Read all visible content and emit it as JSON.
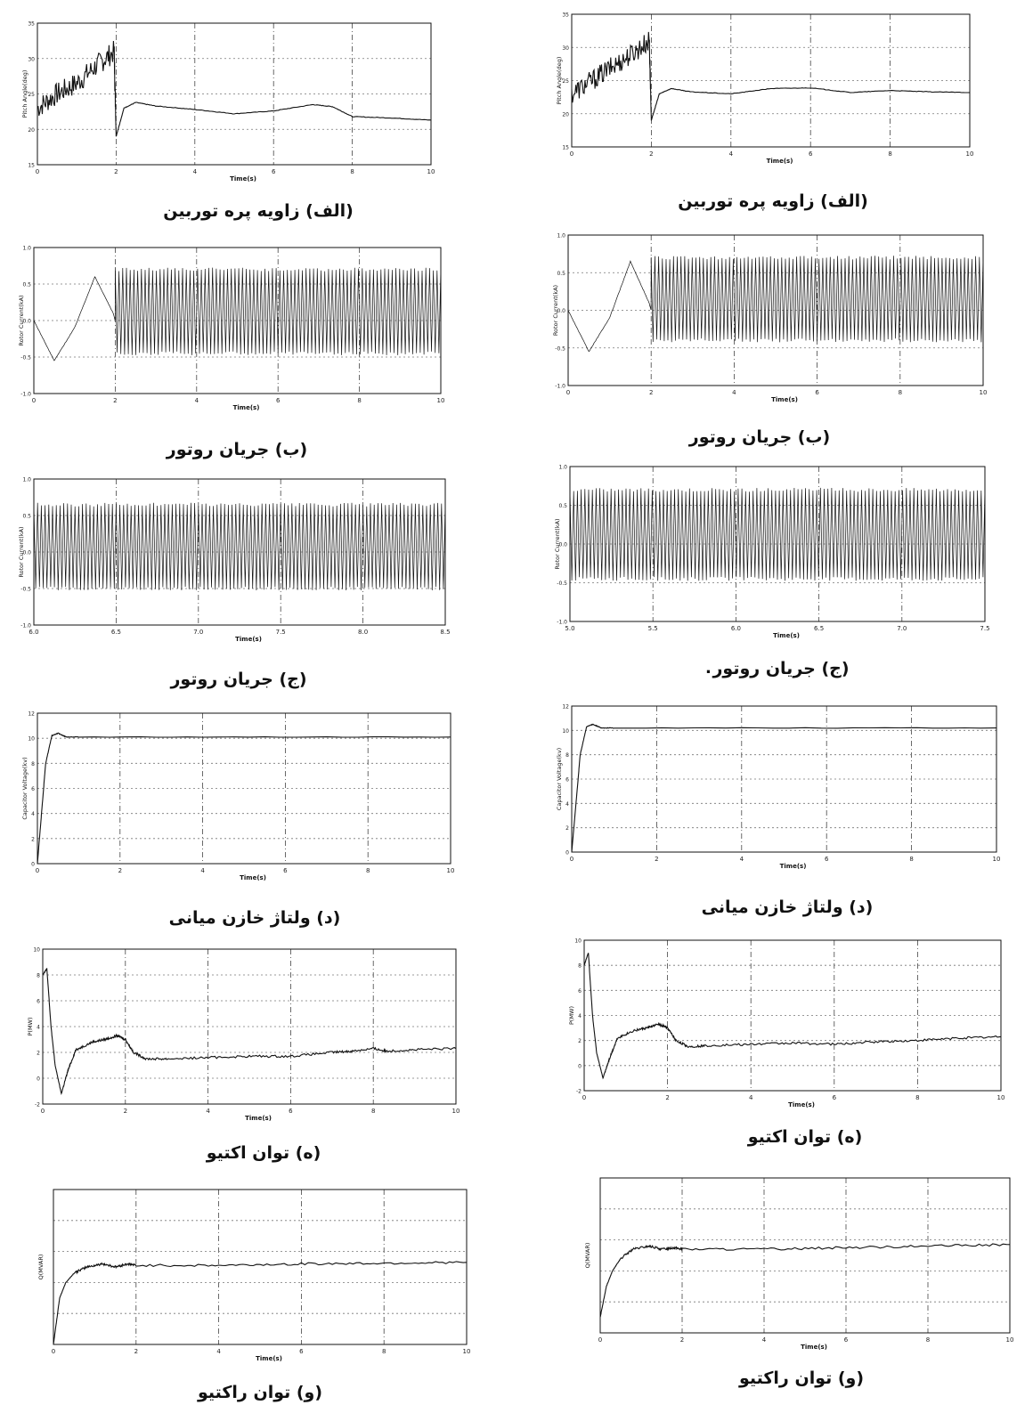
{
  "figure": {
    "stray_mark": "."
  },
  "panels": [
    {
      "id": "L1",
      "caption": "(الف) زاویه پره توربین",
      "chart_data": {
        "type": "line",
        "title": "",
        "xlabel": "Time(s)",
        "ylabel": "Pitch Angle(deg)",
        "xlim": [
          0,
          10
        ],
        "ylim": [
          15,
          35
        ],
        "xticks": [
          "0",
          "2",
          "4",
          "6",
          "8",
          "10"
        ],
        "yticks": [
          "15",
          "20",
          "25",
          "30",
          "35"
        ],
        "grid": true,
        "legend": "none",
        "series": [
          {
            "values": [
              [
                0,
                23
              ],
              [
                0.5,
                25
              ],
              [
                1,
                26.5
              ],
              [
                1.5,
                29
              ],
              [
                1.95,
                31
              ],
              [
                2.0,
                19
              ],
              [
                2.2,
                23
              ],
              [
                2.5,
                23.8
              ],
              [
                3,
                23.3
              ],
              [
                4,
                22.8
              ],
              [
                5,
                22.2
              ],
              [
                6,
                22.6
              ],
              [
                7,
                23.5
              ],
              [
                7.5,
                23.2
              ],
              [
                8,
                21.8
              ],
              [
                9,
                21.6
              ],
              [
                10,
                21.3
              ]
            ]
          }
        ]
      }
    },
    {
      "id": "R1",
      "caption": "(الف) زاویه پره توربین",
      "chart_data": {
        "type": "line",
        "title": "",
        "xlabel": "Time(s)",
        "ylabel": "Pitch Angle(deg)",
        "xlim": [
          0,
          10
        ],
        "ylim": [
          15,
          35
        ],
        "xticks": [
          "0",
          "2",
          "4",
          "6",
          "8",
          "10"
        ],
        "yticks": [
          "15",
          "20",
          "25",
          "30",
          "35"
        ],
        "grid": true,
        "legend": "none",
        "series": [
          {
            "values": [
              [
                0,
                23
              ],
              [
                0.5,
                25
              ],
              [
                1,
                27
              ],
              [
                1.5,
                29
              ],
              [
                1.95,
                31
              ],
              [
                2.0,
                19
              ],
              [
                2.2,
                23
              ],
              [
                2.5,
                23.8
              ],
              [
                3,
                23.3
              ],
              [
                4,
                23
              ],
              [
                5,
                23.8
              ],
              [
                6,
                23.9
              ],
              [
                7,
                23.2
              ],
              [
                8,
                23.5
              ],
              [
                9,
                23.3
              ],
              [
                10,
                23.2
              ]
            ]
          }
        ]
      }
    },
    {
      "id": "L2",
      "caption": "(ب) جریان روتور",
      "chart_data": {
        "type": "line",
        "title": "",
        "xlabel": "Time(s)",
        "ylabel": "Rotor Current(kA)",
        "xlim": [
          0,
          10
        ],
        "ylim": [
          -1.0,
          1.0
        ],
        "xticks": [
          "0",
          "2",
          "4",
          "6",
          "8",
          "10"
        ],
        "yticks": [
          "-1.0",
          "-0.5",
          "0.0",
          "0.5",
          "1.0"
        ],
        "grid": true,
        "legend": "none",
        "series": [
          {
            "values": [
              [
                0,
                0
              ],
              [
                0.5,
                -0.55
              ],
              [
                1.0,
                -0.1
              ],
              [
                1.5,
                0.6
              ],
              [
                1.95,
                0.1
              ],
              [
                2.0,
                0.0
              ],
              [
                2.05,
                0.7
              ],
              [
                10,
                0.7
              ]
            ],
            "oscillation": {
              "from": 2.0,
              "to": 10,
              "max": 0.7,
              "min": -0.45
            }
          }
        ]
      }
    },
    {
      "id": "R2",
      "caption": "(ب) جریان روتور",
      "chart_data": {
        "type": "line",
        "title": "",
        "xlabel": "Time(s)",
        "ylabel": "Rotor Current(kA)",
        "xlim": [
          0,
          10
        ],
        "ylim": [
          -1.0,
          1.0
        ],
        "xticks": [
          "0",
          "2",
          "4",
          "6",
          "8",
          "10"
        ],
        "yticks": [
          "-1.0",
          "-0.5",
          "0.0",
          "0.5",
          "1.0"
        ],
        "grid": true,
        "legend": "none",
        "series": [
          {
            "values": [
              [
                0,
                0
              ],
              [
                0.5,
                -0.55
              ],
              [
                1.0,
                -0.1
              ],
              [
                1.5,
                0.65
              ],
              [
                1.95,
                0.1
              ],
              [
                2.0,
                0.0
              ],
              [
                2.05,
                0.7
              ],
              [
                10,
                0.7
              ]
            ],
            "oscillation": {
              "from": 2.0,
              "to": 10,
              "max": 0.7,
              "min": -0.4
            }
          }
        ]
      }
    },
    {
      "id": "L3",
      "caption": "(ج) جریان روتور",
      "chart_data": {
        "type": "line",
        "title": "",
        "xlabel": "Time(s)",
        "ylabel": "Rotor Current(kA)",
        "xlim": [
          6.0,
          8.5
        ],
        "ylim": [
          -1.0,
          1.0
        ],
        "xticks": [
          "6.0",
          "6.5",
          "7.0",
          "7.5",
          "8.0",
          "8.5"
        ],
        "yticks": [
          "-1.0",
          "-0.5",
          "0.0",
          "0.5",
          "1.0"
        ],
        "grid": true,
        "legend": "none",
        "series": [
          {
            "values": [],
            "oscillation": {
              "from": 6.0,
              "to": 8.5,
              "max": 0.65,
              "min": -0.5
            }
          }
        ]
      }
    },
    {
      "id": "R3",
      "caption": "(ج) جریان روتور",
      "chart_data": {
        "type": "line",
        "title": "",
        "xlabel": "Time(s)",
        "ylabel": "Rotor Current(kA)",
        "xlim": [
          5.0,
          7.5
        ],
        "ylim": [
          -1.0,
          1.0
        ],
        "xticks": [
          "5.0",
          "5.5",
          "6.0",
          "6.5",
          "7.0",
          "7.5"
        ],
        "yticks": [
          "-1.0",
          "-0.5",
          "0.0",
          "0.5",
          "1.0"
        ],
        "grid": true,
        "legend": "none",
        "series": [
          {
            "values": [],
            "oscillation": {
              "from": 5.0,
              "to": 7.5,
              "max": 0.7,
              "min": -0.45
            }
          }
        ]
      }
    },
    {
      "id": "L4",
      "caption": "(د) ولتاژ خازن میانی",
      "chart_data": {
        "type": "line",
        "title": "",
        "xlabel": "Time(s)",
        "ylabel": "Capacitor Voltage(kv)",
        "xlim": [
          0,
          10
        ],
        "ylim": [
          0,
          12
        ],
        "xticks": [
          "0",
          "2",
          "4",
          "6",
          "8",
          "10"
        ],
        "yticks": [
          "0",
          "2",
          "4",
          "6",
          "8",
          "10",
          "12"
        ],
        "grid": true,
        "legend": "none",
        "series": [
          {
            "values": [
              [
                0,
                0
              ],
              [
                0.1,
                4
              ],
              [
                0.2,
                8
              ],
              [
                0.35,
                10.2
              ],
              [
                0.5,
                10.4
              ],
              [
                0.7,
                10.1
              ],
              [
                1,
                10.1
              ],
              [
                10,
                10.1
              ]
            ]
          }
        ]
      }
    },
    {
      "id": "R4",
      "caption": "(د) ولتاژ خازن میانی",
      "chart_data": {
        "type": "line",
        "title": "",
        "xlabel": "Time(s)",
        "ylabel": "Capacitor Voltage(kv)",
        "xlim": [
          0,
          10
        ],
        "ylim": [
          0,
          12
        ],
        "xticks": [
          "0",
          "2",
          "4",
          "6",
          "8",
          "10"
        ],
        "yticks": [
          "0",
          "2",
          "4",
          "6",
          "8",
          "10",
          "12"
        ],
        "grid": true,
        "legend": "none",
        "series": [
          {
            "values": [
              [
                0,
                0
              ],
              [
                0.1,
                4
              ],
              [
                0.2,
                8
              ],
              [
                0.35,
                10.3
              ],
              [
                0.5,
                10.5
              ],
              [
                0.7,
                10.2
              ],
              [
                1,
                10.2
              ],
              [
                10,
                10.2
              ]
            ]
          }
        ]
      }
    },
    {
      "id": "L5",
      "caption": "(ه) توان اکتیو",
      "chart_data": {
        "type": "line",
        "title": "",
        "xlabel": "Time(s)",
        "ylabel": "P(MW)",
        "xlim": [
          0,
          10
        ],
        "ylim": [
          -2,
          10
        ],
        "xticks": [
          "0",
          "2",
          "4",
          "6",
          "8",
          "10"
        ],
        "yticks": [
          "-2",
          "0",
          "2",
          "4",
          "6",
          "8",
          "10"
        ],
        "grid": true,
        "legend": "none",
        "series": [
          {
            "values": [
              [
                0,
                8
              ],
              [
                0.1,
                8.5
              ],
              [
                0.2,
                4
              ],
              [
                0.3,
                1
              ],
              [
                0.45,
                -1.2
              ],
              [
                0.6,
                0.5
              ],
              [
                0.8,
                2.2
              ],
              [
                1.2,
                2.8
              ],
              [
                1.5,
                3.0
              ],
              [
                1.8,
                3.3
              ],
              [
                2.0,
                3.0
              ],
              [
                2.2,
                2.0
              ],
              [
                2.5,
                1.5
              ],
              [
                3,
                1.5
              ],
              [
                4,
                1.6
              ],
              [
                5,
                1.7
              ],
              [
                6,
                1.7
              ],
              [
                7,
                2.0
              ],
              [
                7.5,
                2.1
              ],
              [
                8,
                2.3
              ],
              [
                8.3,
                2.1
              ],
              [
                9,
                2.2
              ],
              [
                10,
                2.3
              ]
            ]
          }
        ]
      }
    },
    {
      "id": "R5",
      "caption": "(ه) توان اکتیو",
      "chart_data": {
        "type": "line",
        "title": "",
        "xlabel": "Time(s)",
        "ylabel": "P(MW)",
        "xlim": [
          0,
          10
        ],
        "ylim": [
          -2,
          10
        ],
        "xticks": [
          "0",
          "2",
          "4",
          "6",
          "8",
          "10"
        ],
        "yticks": [
          "-2",
          "0",
          "2",
          "4",
          "6",
          "8",
          "10"
        ],
        "grid": true,
        "legend": "none",
        "series": [
          {
            "values": [
              [
                0,
                8
              ],
              [
                0.1,
                9
              ],
              [
                0.2,
                4
              ],
              [
                0.3,
                1
              ],
              [
                0.45,
                -1
              ],
              [
                0.6,
                0.5
              ],
              [
                0.8,
                2.2
              ],
              [
                1.2,
                2.8
              ],
              [
                1.5,
                3.0
              ],
              [
                1.8,
                3.3
              ],
              [
                2.0,
                3.0
              ],
              [
                2.2,
                2.0
              ],
              [
                2.5,
                1.5
              ],
              [
                3,
                1.6
              ],
              [
                4,
                1.7
              ],
              [
                5,
                1.8
              ],
              [
                6,
                1.7
              ],
              [
                7,
                1.9
              ],
              [
                8,
                2.0
              ],
              [
                9,
                2.2
              ],
              [
                10,
                2.3
              ]
            ]
          }
        ]
      }
    },
    {
      "id": "L6",
      "caption": "(و) توان راکتیو",
      "chart_data": {
        "type": "line",
        "title": "",
        "xlabel": "Time(s)",
        "ylabel": "Q(MVAR)",
        "xlim": [
          0,
          10
        ],
        "ylim": [
          -2,
          3
        ],
        "xticks": [
          "0",
          "2",
          "4",
          "6",
          "8",
          "10"
        ],
        "yticks": [],
        "grid": true,
        "legend": "none",
        "series": [
          {
            "values": [
              [
                0,
                -2
              ],
              [
                0.15,
                -0.5
              ],
              [
                0.3,
                0
              ],
              [
                0.5,
                0.3
              ],
              [
                0.8,
                0.5
              ],
              [
                1.2,
                0.6
              ],
              [
                1.5,
                0.5
              ],
              [
                1.8,
                0.6
              ],
              [
                2,
                0.55
              ],
              [
                4,
                0.55
              ],
              [
                6,
                0.6
              ],
              [
                8,
                0.62
              ],
              [
                10,
                0.65
              ]
            ]
          }
        ]
      }
    },
    {
      "id": "R6",
      "caption": "(و) توان راکتیو",
      "chart_data": {
        "type": "line",
        "title": "",
        "xlabel": "Time(s)",
        "ylabel": "Q(MVAR)",
        "xlim": [
          0,
          10
        ],
        "ylim": [
          -2,
          3
        ],
        "xticks": [
          "0",
          "2",
          "4",
          "6",
          "8",
          "10"
        ],
        "yticks": [],
        "grid": true,
        "legend": "none",
        "series": [
          {
            "values": [
              [
                0,
                -1.5
              ],
              [
                0.15,
                -0.5
              ],
              [
                0.3,
                0
              ],
              [
                0.5,
                0.4
              ],
              [
                0.8,
                0.7
              ],
              [
                1.2,
                0.8
              ],
              [
                1.5,
                0.7
              ],
              [
                1.8,
                0.75
              ],
              [
                2,
                0.7
              ],
              [
                4,
                0.7
              ],
              [
                6,
                0.75
              ],
              [
                8,
                0.8
              ],
              [
                10,
                0.85
              ]
            ]
          }
        ]
      }
    }
  ]
}
